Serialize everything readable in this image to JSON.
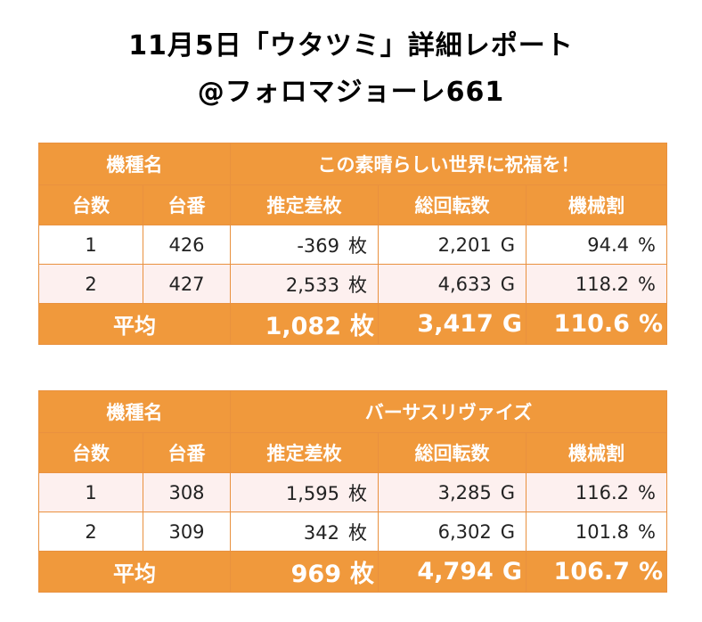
{
  "title": {
    "line1": "11月5日「ウタツミ」詳細レポート",
    "line2": "@フォロマジョーレ661"
  },
  "labels": {
    "machine_name": "機種名",
    "unit_count": "台数",
    "unit_no": "台番",
    "est_diff": "推定差枚",
    "total_spins": "総回転数",
    "payout_rate": "機械割",
    "average": "平均",
    "coin_unit": "枚",
    "spin_unit": "G",
    "pct_unit": "%"
  },
  "tables": [
    {
      "machine": "この素晴らしい世界に祝福を！",
      "rows": [
        {
          "count": "1",
          "no": "426",
          "diff": "-369",
          "spins": "2,201",
          "rate": "94.4"
        },
        {
          "count": "2",
          "no": "427",
          "diff": "2,533",
          "spins": "4,633",
          "rate": "118.2"
        }
      ],
      "avg": {
        "diff": "1,082",
        "spins": "3,417",
        "rate": "110.6"
      }
    },
    {
      "machine": "バーサスリヴァイズ",
      "rows": [
        {
          "count": "1",
          "no": "308",
          "diff": "1,595",
          "spins": "3,285",
          "rate": "116.2"
        },
        {
          "count": "2",
          "no": "309",
          "diff": "342",
          "spins": "6,302",
          "rate": "101.8"
        }
      ],
      "avg": {
        "diff": "969",
        "spins": "4,794",
        "rate": "106.7"
      }
    }
  ],
  "colors": {
    "header_orange": "#f0993c",
    "row_pink": "#fdf0ef",
    "header_text": "#ffffff"
  }
}
